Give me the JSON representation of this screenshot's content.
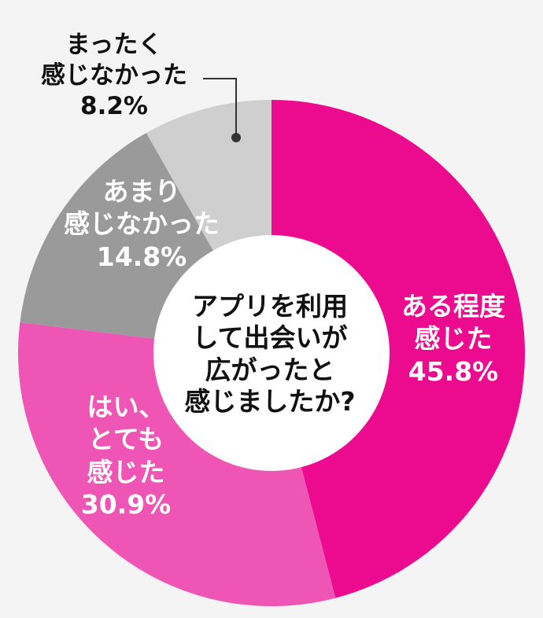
{
  "chart_data": {
    "type": "pie",
    "donut": true,
    "center_text": [
      "アプリを利用",
      "して出会いが",
      "広がったと",
      "感じましたか?"
    ],
    "slices": [
      {
        "label_lines": [
          "ある程度",
          "感じた"
        ],
        "value": 45.8,
        "value_text": "45.8%",
        "color": "#ec0b8f"
      },
      {
        "label_lines": [
          "はい、",
          "とても",
          "感じた"
        ],
        "value": 30.9,
        "value_text": "30.9%",
        "color": "#ee55b4"
      },
      {
        "label_lines": [
          "あまり",
          "感じなかった"
        ],
        "value": 14.8,
        "value_text": "14.8%",
        "color": "#9a9a9a"
      },
      {
        "label_lines": [
          "まったく",
          "感じなかった"
        ],
        "value": 8.2,
        "value_text": "8.2%",
        "color": "#cfcfcf"
      }
    ]
  }
}
